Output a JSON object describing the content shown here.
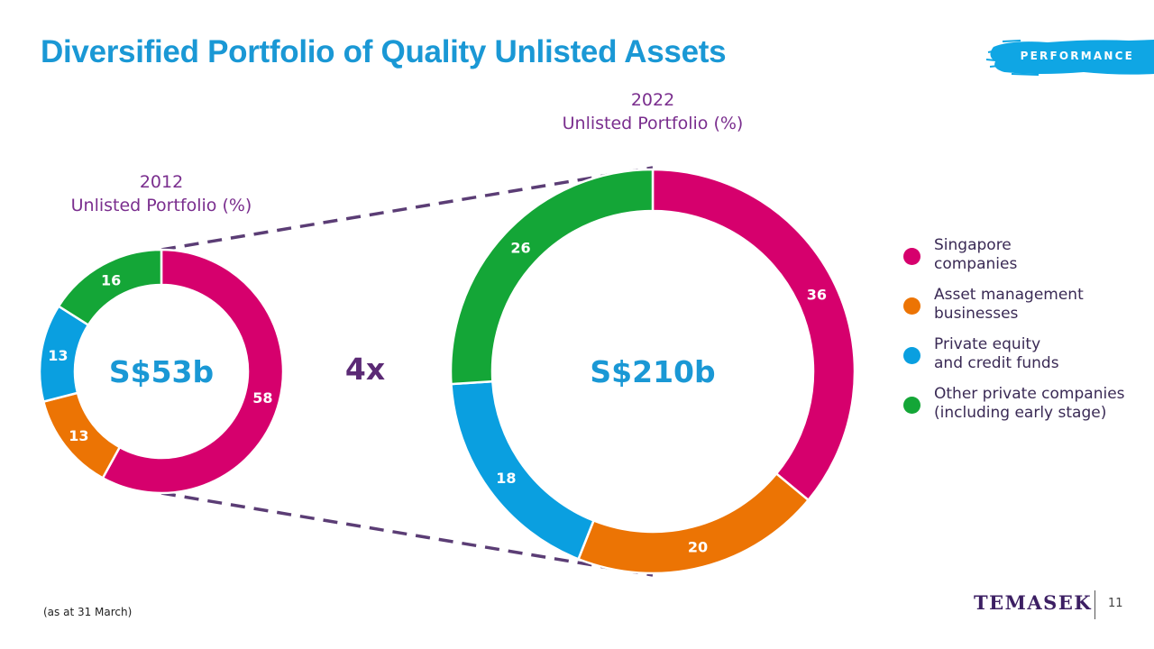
{
  "slide": {
    "title": "Diversified Portfolio of Quality Unlisted Assets",
    "section_tag": "PERFORMANCE",
    "footnote": "(as at 31 March)",
    "brand": "TEMASEK",
    "page_number": "11"
  },
  "legend": {
    "items": [
      {
        "label": "Singapore\ncompanies",
        "color": "#d6006d"
      },
      {
        "label": "Asset management\nbusinesses",
        "color": "#ec7404"
      },
      {
        "label": "Private equity\nand credit funds",
        "color": "#0a9fe0"
      },
      {
        "label": "Other private companies\n(including early stage)",
        "color": "#14a637"
      }
    ]
  },
  "colors": {
    "title": "#1a98d5",
    "chart_caption": "#7a2e8e",
    "multiplier": "#5b2a75",
    "connector": "#5b3d75",
    "total": "#1a98d5",
    "tag_brush": "#0fa6e4"
  },
  "chart_data": [
    {
      "type": "pie",
      "title": "2012\nUnlisted Portfolio (%)",
      "total_label": "S$53b",
      "categories": [
        "Singapore companies",
        "Asset management businesses",
        "Private equity and credit funds",
        "Other private companies (including early stage)"
      ],
      "values": [
        58,
        13,
        13,
        16
      ],
      "donut": true
    },
    {
      "type": "pie",
      "title": "2022\nUnlisted Portfolio (%)",
      "total_label": "S$210b",
      "categories": [
        "Singapore companies",
        "Asset management businesses",
        "Private equity and credit funds",
        "Other private companies (including early stage)"
      ],
      "values": [
        36,
        20,
        18,
        26
      ],
      "donut": true
    }
  ],
  "multiplier": "4x"
}
